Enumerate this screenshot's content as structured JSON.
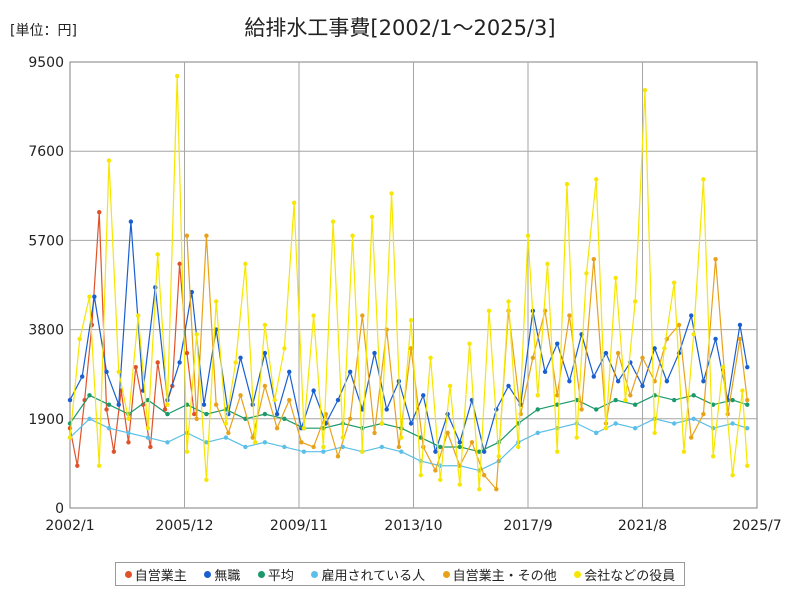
{
  "unit_label": "[単位：円]",
  "chart_data": {
    "type": "line",
    "title": "給排水工事費[2002/1～2025/3]",
    "xlabel": "",
    "ylabel": "",
    "ylim": [
      0,
      9500
    ],
    "yticks": [
      0,
      1900,
      3800,
      5700,
      7600,
      9500
    ],
    "xlim": [
      "2002/1",
      "2025/7"
    ],
    "xticks": [
      "2002/1",
      "2005/12",
      "2009/11",
      "2013/10",
      "2017/9",
      "2021/8",
      "2025/7"
    ],
    "grid": true,
    "legend_position": "bottom",
    "series": [
      {
        "name": "自営業主",
        "color": "#e0522a",
        "points": [
          [
            "2002/1",
            1700
          ],
          [
            "2002/4",
            900
          ],
          [
            "2002/7",
            2300
          ],
          [
            "2002/10",
            3900
          ],
          [
            "2003/1",
            6300
          ],
          [
            "2003/4",
            2100
          ],
          [
            "2003/7",
            1200
          ],
          [
            "2003/10",
            2500
          ],
          [
            "2004/1",
            1400
          ],
          [
            "2004/4",
            3000
          ],
          [
            "2004/7",
            2200
          ],
          [
            "2004/10",
            1300
          ],
          [
            "2005/1",
            3100
          ],
          [
            "2005/4",
            2100
          ],
          [
            "2005/7",
            2600
          ],
          [
            "2005/10",
            5200
          ],
          [
            "2006/1",
            3300
          ],
          [
            "2006/4",
            2000
          ]
        ]
      },
      {
        "name": "無職",
        "color": "#1a5fd0",
        "points": [
          [
            "2002/1",
            2300
          ],
          [
            "2002/6",
            2800
          ],
          [
            "2002/11",
            4500
          ],
          [
            "2003/4",
            2900
          ],
          [
            "2003/9",
            2200
          ],
          [
            "2004/2",
            6100
          ],
          [
            "2004/7",
            2500
          ],
          [
            "2004/12",
            4700
          ],
          [
            "2005/5",
            2300
          ],
          [
            "2005/10",
            3100
          ],
          [
            "2006/3",
            4600
          ],
          [
            "2006/8",
            2200
          ],
          [
            "2007/1",
            3800
          ],
          [
            "2007/6",
            2000
          ],
          [
            "2007/11",
            3200
          ],
          [
            "2008/4",
            2200
          ],
          [
            "2008/9",
            3300
          ],
          [
            "2009/2",
            2000
          ],
          [
            "2009/7",
            2900
          ],
          [
            "2009/12",
            1700
          ],
          [
            "2010/5",
            2500
          ],
          [
            "2010/10",
            1800
          ],
          [
            "2011/3",
            2300
          ],
          [
            "2011/8",
            2900
          ],
          [
            "2012/1",
            2100
          ],
          [
            "2012/6",
            3300
          ],
          [
            "2012/11",
            2100
          ],
          [
            "2013/4",
            2700
          ],
          [
            "2013/9",
            1800
          ],
          [
            "2014/2",
            2400
          ],
          [
            "2014/7",
            1200
          ],
          [
            "2014/12",
            2000
          ],
          [
            "2015/5",
            1400
          ],
          [
            "2015/10",
            2300
          ],
          [
            "2016/3",
            1200
          ],
          [
            "2016/8",
            2100
          ],
          [
            "2017/1",
            2600
          ],
          [
            "2017/6",
            2200
          ],
          [
            "2017/11",
            4200
          ],
          [
            "2018/4",
            2900
          ],
          [
            "2018/9",
            3500
          ],
          [
            "2019/2",
            2700
          ],
          [
            "2019/7",
            3700
          ],
          [
            "2019/12",
            2800
          ],
          [
            "2020/5",
            3300
          ],
          [
            "2020/10",
            2700
          ],
          [
            "2021/3",
            3100
          ],
          [
            "2021/8",
            2600
          ],
          [
            "2022/1",
            3400
          ],
          [
            "2022/6",
            2700
          ],
          [
            "2022/11",
            3300
          ],
          [
            "2023/4",
            4100
          ],
          [
            "2023/9",
            2700
          ],
          [
            "2024/2",
            3600
          ],
          [
            "2024/7",
            2300
          ],
          [
            "2024/12",
            3900
          ],
          [
            "2025/3",
            3000
          ]
        ]
      },
      {
        "name": "平均",
        "color": "#1a9a6a",
        "points": [
          [
            "2002/1",
            1800
          ],
          [
            "2002/9",
            2400
          ],
          [
            "2003/5",
            2200
          ],
          [
            "2004/1",
            2000
          ],
          [
            "2004/9",
            2300
          ],
          [
            "2005/5",
            2000
          ],
          [
            "2006/1",
            2200
          ],
          [
            "2006/9",
            2000
          ],
          [
            "2007/5",
            2100
          ],
          [
            "2008/1",
            1900
          ],
          [
            "2008/9",
            2000
          ],
          [
            "2009/5",
            1900
          ],
          [
            "2010/1",
            1700
          ],
          [
            "2010/9",
            1700
          ],
          [
            "2011/5",
            1800
          ],
          [
            "2012/1",
            1700
          ],
          [
            "2012/9",
            1800
          ],
          [
            "2013/5",
            1700
          ],
          [
            "2014/1",
            1500
          ],
          [
            "2014/9",
            1300
          ],
          [
            "2015/5",
            1300
          ],
          [
            "2016/1",
            1200
          ],
          [
            "2016/9",
            1400
          ],
          [
            "2017/5",
            1800
          ],
          [
            "2018/1",
            2100
          ],
          [
            "2018/9",
            2200
          ],
          [
            "2019/5",
            2300
          ],
          [
            "2020/1",
            2100
          ],
          [
            "2020/9",
            2300
          ],
          [
            "2021/5",
            2200
          ],
          [
            "2022/1",
            2400
          ],
          [
            "2022/9",
            2300
          ],
          [
            "2023/5",
            2400
          ],
          [
            "2024/1",
            2200
          ],
          [
            "2024/9",
            2300
          ],
          [
            "2025/3",
            2200
          ]
        ]
      },
      {
        "name": "雇用されている人",
        "color": "#5bbfe8",
        "points": [
          [
            "2002/1",
            1500
          ],
          [
            "2002/9",
            1900
          ],
          [
            "2003/5",
            1700
          ],
          [
            "2004/1",
            1600
          ],
          [
            "2004/9",
            1500
          ],
          [
            "2005/5",
            1400
          ],
          [
            "2006/1",
            1600
          ],
          [
            "2006/9",
            1400
          ],
          [
            "2007/5",
            1500
          ],
          [
            "2008/1",
            1300
          ],
          [
            "2008/9",
            1400
          ],
          [
            "2009/5",
            1300
          ],
          [
            "2010/1",
            1200
          ],
          [
            "2010/9",
            1200
          ],
          [
            "2011/5",
            1300
          ],
          [
            "2012/1",
            1200
          ],
          [
            "2012/9",
            1300
          ],
          [
            "2013/5",
            1200
          ],
          [
            "2014/1",
            1000
          ],
          [
            "2014/9",
            900
          ],
          [
            "2015/5",
            900
          ],
          [
            "2016/1",
            800
          ],
          [
            "2016/9",
            1000
          ],
          [
            "2017/5",
            1400
          ],
          [
            "2018/1",
            1600
          ],
          [
            "2018/9",
            1700
          ],
          [
            "2019/5",
            1800
          ],
          [
            "2020/1",
            1600
          ],
          [
            "2020/9",
            1800
          ],
          [
            "2021/5",
            1700
          ],
          [
            "2022/1",
            1900
          ],
          [
            "2022/9",
            1800
          ],
          [
            "2023/5",
            1900
          ],
          [
            "2024/1",
            1700
          ],
          [
            "2024/9",
            1800
          ],
          [
            "2025/3",
            1700
          ]
        ]
      },
      {
        "name": "自営業主・その他",
        "color": "#e8a21a",
        "points": [
          [
            "2006/1",
            5800
          ],
          [
            "2006/5",
            1900
          ],
          [
            "2006/9",
            5800
          ],
          [
            "2007/1",
            2200
          ],
          [
            "2007/6",
            1600
          ],
          [
            "2007/11",
            2400
          ],
          [
            "2008/4",
            1500
          ],
          [
            "2008/9",
            2600
          ],
          [
            "2009/2",
            1700
          ],
          [
            "2009/7",
            2300
          ],
          [
            "2009/12",
            1400
          ],
          [
            "2010/5",
            1300
          ],
          [
            "2010/10",
            2000
          ],
          [
            "2011/3",
            1100
          ],
          [
            "2011/8",
            1900
          ],
          [
            "2012/1",
            4100
          ],
          [
            "2012/6",
            1600
          ],
          [
            "2012/11",
            3800
          ],
          [
            "2013/4",
            1300
          ],
          [
            "2013/9",
            3400
          ],
          [
            "2014/2",
            1300
          ],
          [
            "2014/7",
            800
          ],
          [
            "2014/12",
            1600
          ],
          [
            "2015/5",
            900
          ],
          [
            "2015/10",
            1400
          ],
          [
            "2016/3",
            700
          ],
          [
            "2016/8",
            400
          ],
          [
            "2017/1",
            4200
          ],
          [
            "2017/6",
            2000
          ],
          [
            "2017/11",
            3200
          ],
          [
            "2018/4",
            4200
          ],
          [
            "2018/9",
            2400
          ],
          [
            "2019/2",
            4100
          ],
          [
            "2019/7",
            2100
          ],
          [
            "2019/12",
            5300
          ],
          [
            "2020/5",
            1800
          ],
          [
            "2020/10",
            3300
          ],
          [
            "2021/3",
            2400
          ],
          [
            "2021/8",
            3200
          ],
          [
            "2022/1",
            2700
          ],
          [
            "2022/6",
            3600
          ],
          [
            "2022/11",
            3900
          ],
          [
            "2023/4",
            1500
          ],
          [
            "2023/9",
            2000
          ],
          [
            "2024/2",
            5300
          ],
          [
            "2024/7",
            2000
          ],
          [
            "2024/12",
            3600
          ],
          [
            "2025/3",
            2300
          ]
        ]
      },
      {
        "name": "会社などの役員",
        "color": "#f6e600",
        "points": [
          [
            "2002/1",
            1500
          ],
          [
            "2002/5",
            3600
          ],
          [
            "2002/9",
            4500
          ],
          [
            "2003/1",
            900
          ],
          [
            "2003/5",
            7400
          ],
          [
            "2003/9",
            2900
          ],
          [
            "2004/1",
            1900
          ],
          [
            "2004/5",
            4100
          ],
          [
            "2004/9",
            1700
          ],
          [
            "2005/1",
            5400
          ],
          [
            "2005/5",
            2200
          ],
          [
            "2005/9",
            9200
          ],
          [
            "2006/1",
            1200
          ],
          [
            "2006/5",
            3700
          ],
          [
            "2006/9",
            600
          ],
          [
            "2007/1",
            4400
          ],
          [
            "2007/5",
            1800
          ],
          [
            "2007/9",
            3100
          ],
          [
            "2008/1",
            5200
          ],
          [
            "2008/5",
            1400
          ],
          [
            "2008/9",
            3900
          ],
          [
            "2009/1",
            2300
          ],
          [
            "2009/5",
            3400
          ],
          [
            "2009/9",
            6500
          ],
          [
            "2010/1",
            1700
          ],
          [
            "2010/5",
            4100
          ],
          [
            "2010/9",
            1300
          ],
          [
            "2011/1",
            6100
          ],
          [
            "2011/5",
            1500
          ],
          [
            "2011/9",
            5800
          ],
          [
            "2012/1",
            1200
          ],
          [
            "2012/5",
            6200
          ],
          [
            "2012/9",
            1800
          ],
          [
            "2013/1",
            6700
          ],
          [
            "2013/5",
            1500
          ],
          [
            "2013/9",
            4000
          ],
          [
            "2014/1",
            700
          ],
          [
            "2014/5",
            3200
          ],
          [
            "2014/9",
            600
          ],
          [
            "2015/1",
            2600
          ],
          [
            "2015/5",
            500
          ],
          [
            "2015/9",
            3500
          ],
          [
            "2016/1",
            400
          ],
          [
            "2016/5",
            4200
          ],
          [
            "2016/9",
            1100
          ],
          [
            "2017/1",
            4400
          ],
          [
            "2017/5",
            1300
          ],
          [
            "2017/9",
            5800
          ],
          [
            "2018/1",
            2400
          ],
          [
            "2018/5",
            5200
          ],
          [
            "2018/9",
            1200
          ],
          [
            "2019/1",
            6900
          ],
          [
            "2019/5",
            1500
          ],
          [
            "2019/9",
            5000
          ],
          [
            "2020/1",
            7000
          ],
          [
            "2020/5",
            1700
          ],
          [
            "2020/9",
            4900
          ],
          [
            "2021/1",
            2300
          ],
          [
            "2021/5",
            4400
          ],
          [
            "2021/9",
            8900
          ],
          [
            "2022/1",
            1600
          ],
          [
            "2022/5",
            3400
          ],
          [
            "2022/9",
            4800
          ],
          [
            "2023/1",
            1200
          ],
          [
            "2023/5",
            3700
          ],
          [
            "2023/9",
            7000
          ],
          [
            "2024/1",
            1100
          ],
          [
            "2024/5",
            3000
          ],
          [
            "2024/9",
            700
          ],
          [
            "2025/1",
            2500
          ],
          [
            "2025/3",
            900
          ]
        ]
      }
    ]
  }
}
